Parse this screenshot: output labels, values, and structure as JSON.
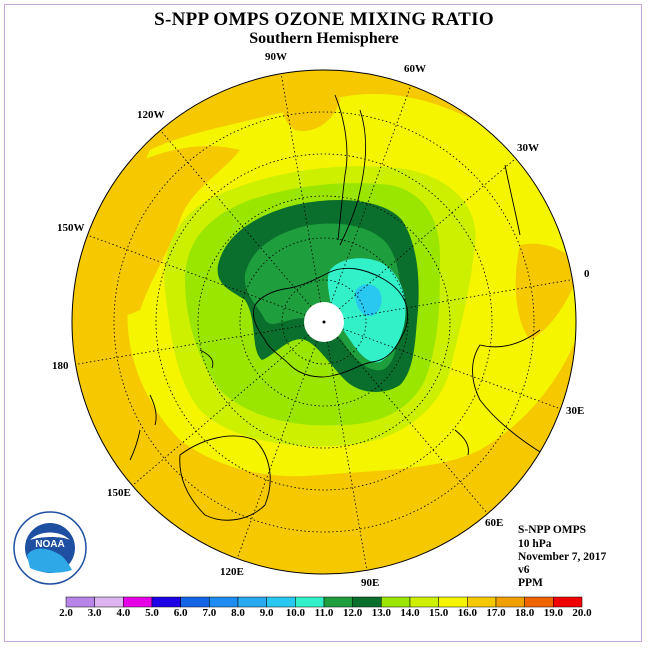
{
  "title": "S-NPP OMPS OZONE MIXING RATIO",
  "subtitle": "Southern Hemisphere",
  "longitude_labels": [
    "90W",
    "60W",
    "30W",
    "0",
    "30E",
    "60E",
    "90E",
    "120E",
    "150E",
    "180",
    "150W",
    "120W"
  ],
  "info": {
    "instrument": "S-NPP OMPS",
    "level": "10 hPa",
    "date": "November 7, 2017",
    "version": "v6",
    "units": "PPM"
  },
  "logo_text": "NOAA",
  "colorbar": {
    "ticks": [
      "2.0",
      "3.0",
      "4.0",
      "5.0",
      "6.0",
      "7.0",
      "8.0",
      "9.0",
      "10.0",
      "11.0",
      "12.0",
      "13.0",
      "14.0",
      "15.0",
      "16.0",
      "17.0",
      "18.0",
      "19.0",
      "20.0"
    ],
    "colors": [
      "#b784e8",
      "#dcb4f0",
      "#e600e6",
      "#1e00e6",
      "#1464e6",
      "#1e8cf0",
      "#28aaf0",
      "#28c8f0",
      "#32f0c8",
      "#1e9e3c",
      "#0a6e2c",
      "#9ae600",
      "#ccf000",
      "#f5f500",
      "#f5c800",
      "#f0a000",
      "#f06400",
      "#f00000",
      "#8c5a3c"
    ]
  },
  "colors": {
    "background_field": "#f5c800",
    "band_15": "#f5f500",
    "band_14": "#ccf000",
    "band_13": "#9ae600",
    "band_12": "#0a6e2c",
    "band_11": "#1e9e3c",
    "band_10": "#32f0c8",
    "band_9": "#28c8f0"
  }
}
